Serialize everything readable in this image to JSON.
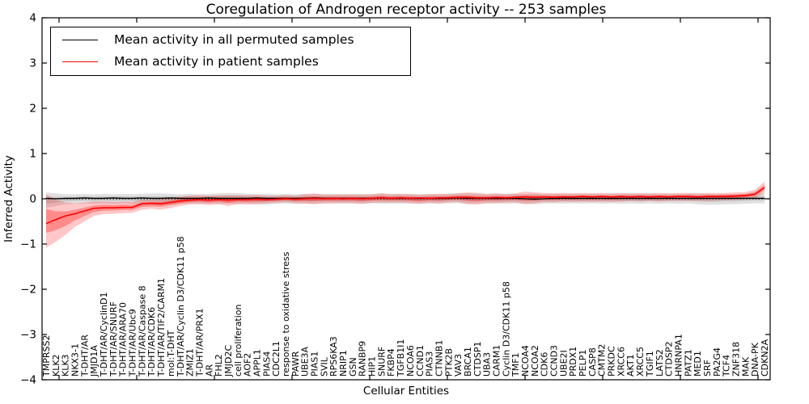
{
  "title": "Coregulation of Androgen receptor activity -- 253 samples",
  "legend": {
    "items": [
      {
        "label": "Mean activity in all permuted samples",
        "color": "#000000"
      },
      {
        "label": "Mean activity in patient samples",
        "color": "#ff0000"
      }
    ]
  },
  "chart_data": {
    "type": "line",
    "title": "Coregulation of Androgen receptor activity -- 253 samples",
    "xlabel": "Cellular Entities",
    "ylabel": "Inferred Activity",
    "ylim": [
      -4,
      4
    ],
    "yticks": [
      "4",
      "3",
      "2",
      "1",
      "0",
      "−1",
      "−2",
      "−3",
      "−4"
    ],
    "ytick_values": [
      4,
      3,
      2,
      1,
      0,
      -1,
      -2,
      -3,
      -4
    ],
    "grid": false,
    "legend_position": "upper left",
    "zero_line": true,
    "categories": [
      "TMPRSS2",
      "KLK2",
      "KLK3",
      "NKX3-1",
      "T-DHT/AR",
      "JMJD1A",
      "T-DHT/AR/CyclinD1",
      "T-DHT/AR/SNURF",
      "T-DHT/AR/ARA70",
      "T-DHT/AR/Ubc9",
      "T-DHT/AR/Caspase 8",
      "T-DHT/AR/CDK6",
      "T-DHT/AR/TIF2/CARM1",
      "mol:T-DHT",
      "T-DHT/AR/Cyclin D3/CDK11 p58",
      "ZMIZ1",
      "T-DHT/AR/PRX1",
      "AR",
      "FHL2",
      "JMJD2C",
      "cell proliferation",
      "AOF2",
      "APPL1",
      "PIAS4",
      "CDC2L1",
      "response to oxidative stress",
      "PAWR",
      "UBE3A",
      "PIAS1",
      "SVIL",
      "RPS6KA3",
      "NRIP1",
      "GSN",
      "RANBP9",
      "HIP1",
      "SNURF",
      "FKBP4",
      "TGFB1I1",
      "NCOA6",
      "CCND1",
      "PIAS3",
      "CTNNB1",
      "PTK2B",
      "VAV3",
      "BRCA1",
      "CTDSP1",
      "UBA3",
      "CARM1",
      "Cyclin D3/CDK11 p58",
      "TMF1",
      "NCOA4",
      "NCOA2",
      "CDK6",
      "CCND3",
      "UBE2I",
      "PRDX1",
      "PELP1",
      "CASP8",
      "CMTM2",
      "PRKDC",
      "XRCC6",
      "AKT1",
      "XRCC5",
      "TGIF1",
      "LATS2",
      "CTDSP2",
      "HNRNPA1",
      "PATZ1",
      "MED1",
      "SRF",
      "PA2G4",
      "TCF4",
      "ZNF318",
      "MAK",
      "DNA-PK",
      "CDKN2A"
    ],
    "series": [
      {
        "name": "Mean activity in all permuted samples",
        "color": "#000000",
        "band_color": "#999999",
        "values": [
          0.01,
          0.0,
          0.01,
          0.01,
          0.02,
          0.01,
          0.01,
          0.02,
          0.01,
          0.01,
          0.02,
          0.01,
          0.01,
          0.02,
          0.01,
          0.01,
          0.01,
          0.02,
          0.01,
          0.01,
          0.01,
          0.01,
          0.02,
          0.01,
          0.01,
          0.01,
          0.01,
          0.01,
          0.02,
          0.01,
          0.01,
          0.01,
          0.01,
          0.01,
          0.01,
          0.02,
          0.01,
          0.01,
          0.01,
          0.01,
          0.01,
          0.01,
          0.01,
          0.02,
          0.01,
          0.01,
          0.01,
          0.01,
          0.01,
          0.01,
          0.0,
          -0.01,
          0.0,
          0.01,
          0.01,
          0.01,
          0.01,
          0.01,
          0.01,
          0.01,
          0.01,
          0.01,
          0.01,
          0.01,
          0.01,
          0.01,
          0.01,
          0.01,
          0.01,
          0.01,
          0.01,
          0.01,
          0.01,
          0.01,
          0.01,
          0.01
        ],
        "band_low": [
          -0.2,
          -0.16,
          -0.12,
          -0.11,
          -0.1,
          -0.11,
          -0.1,
          -0.11,
          -0.1,
          -0.11,
          -0.12,
          -0.13,
          -0.14,
          -0.12,
          -0.11,
          -0.1,
          -0.11,
          -0.1,
          -0.11,
          -0.1,
          -0.11,
          -0.1,
          -0.12,
          -0.13,
          -0.11,
          -0.1,
          -0.11,
          -0.1,
          -0.11,
          -0.1,
          -0.1,
          -0.11,
          -0.1,
          -0.11,
          -0.1,
          -0.11,
          -0.1,
          -0.11,
          -0.1,
          -0.11,
          -0.1,
          -0.11,
          -0.1,
          -0.1,
          -0.11,
          -0.1,
          -0.11,
          -0.1,
          -0.11,
          -0.1,
          -0.11,
          -0.12,
          -0.11,
          -0.1,
          -0.11,
          -0.1,
          -0.11,
          -0.1,
          -0.11,
          -0.1,
          -0.11,
          -0.1,
          -0.11,
          -0.1,
          -0.11,
          -0.1,
          -0.11,
          -0.1,
          -0.12,
          -0.13,
          -0.13,
          -0.12,
          -0.12,
          -0.11,
          -0.1,
          -0.1
        ],
        "band_high": [
          0.14,
          0.12,
          0.1,
          0.1,
          0.11,
          0.1,
          0.11,
          0.1,
          0.11,
          0.1,
          0.11,
          0.12,
          0.12,
          0.11,
          0.1,
          0.11,
          0.1,
          0.11,
          0.12,
          0.13,
          0.13,
          0.11,
          0.1,
          0.11,
          0.1,
          0.11,
          0.1,
          0.11,
          0.1,
          0.11,
          0.1,
          0.11,
          0.1,
          0.11,
          0.1,
          0.12,
          0.11,
          0.1,
          0.11,
          0.1,
          0.11,
          0.1,
          0.11,
          0.12,
          0.12,
          0.11,
          0.1,
          0.11,
          0.1,
          0.11,
          0.1,
          0.11,
          0.1,
          0.11,
          0.1,
          0.11,
          0.1,
          0.11,
          0.1,
          0.11,
          0.1,
          0.11,
          0.1,
          0.11,
          0.1,
          0.11,
          0.1,
          0.11,
          0.1,
          0.11,
          0.1,
          0.11,
          0.1,
          0.11,
          0.12,
          0.12
        ]
      },
      {
        "name": "Mean activity in patient samples",
        "color": "#ff0000",
        "band_color": "#ff0000",
        "values": [
          -0.55,
          -0.46,
          -0.38,
          -0.33,
          -0.27,
          -0.21,
          -0.2,
          -0.2,
          -0.19,
          -0.19,
          -0.11,
          -0.1,
          -0.11,
          -0.08,
          -0.05,
          -0.03,
          -0.02,
          -0.03,
          -0.02,
          -0.03,
          -0.02,
          -0.02,
          -0.01,
          -0.02,
          -0.01,
          0.0,
          -0.01,
          0.0,
          0.01,
          0.0,
          0.01,
          0.0,
          0.01,
          0.0,
          0.01,
          0.02,
          0.01,
          0.02,
          0.01,
          0.02,
          0.01,
          0.02,
          0.02,
          0.03,
          0.03,
          0.02,
          0.02,
          0.03,
          0.02,
          0.03,
          0.04,
          0.03,
          0.04,
          0.03,
          0.04,
          0.04,
          0.05,
          0.04,
          0.05,
          0.04,
          0.05,
          0.04,
          0.05,
          0.04,
          0.05,
          0.04,
          0.05,
          0.05,
          0.04,
          0.05,
          0.05,
          0.05,
          0.06,
          0.07,
          0.1,
          0.25
        ],
        "band_low": [
          -1.08,
          -0.95,
          -0.8,
          -0.62,
          -0.5,
          -0.38,
          -0.34,
          -0.33,
          -0.32,
          -0.31,
          -0.24,
          -0.22,
          -0.24,
          -0.2,
          -0.16,
          -0.13,
          -0.12,
          -0.14,
          -0.12,
          -0.16,
          -0.12,
          -0.13,
          -0.12,
          -0.1,
          -0.09,
          -0.08,
          -0.1,
          -0.11,
          -0.12,
          -0.1,
          -0.1,
          -0.09,
          -0.1,
          -0.11,
          -0.09,
          -0.08,
          -0.09,
          -0.08,
          -0.1,
          -0.11,
          -0.09,
          -0.1,
          -0.08,
          -0.07,
          -0.12,
          -0.13,
          -0.09,
          -0.1,
          -0.08,
          -0.08,
          -0.12,
          -0.1,
          -0.07,
          -0.08,
          -0.06,
          -0.07,
          -0.06,
          -0.07,
          -0.06,
          -0.07,
          -0.06,
          -0.05,
          -0.06,
          -0.05,
          -0.06,
          -0.05,
          -0.04,
          -0.05,
          -0.04,
          -0.05,
          -0.04,
          -0.03,
          -0.02,
          -0.01,
          0.02,
          0.12
        ],
        "band_high": [
          0.1,
          -0.02,
          -0.08,
          -0.1,
          -0.08,
          -0.06,
          -0.06,
          -0.07,
          -0.06,
          -0.07,
          -0.02,
          -0.02,
          -0.01,
          0.02,
          0.05,
          0.07,
          0.08,
          0.07,
          0.08,
          0.08,
          0.08,
          0.08,
          0.09,
          0.07,
          0.07,
          0.08,
          0.07,
          0.1,
          0.12,
          0.09,
          0.1,
          0.09,
          0.1,
          0.09,
          0.1,
          0.12,
          0.1,
          0.11,
          0.1,
          0.09,
          0.1,
          0.11,
          0.11,
          0.12,
          0.14,
          0.13,
          0.11,
          0.12,
          0.11,
          0.12,
          0.16,
          0.14,
          0.13,
          0.12,
          0.13,
          0.12,
          0.13,
          0.12,
          0.13,
          0.12,
          0.13,
          0.12,
          0.13,
          0.12,
          0.13,
          0.12,
          0.13,
          0.13,
          0.12,
          0.13,
          0.13,
          0.13,
          0.14,
          0.15,
          0.2,
          0.38
        ]
      }
    ]
  }
}
